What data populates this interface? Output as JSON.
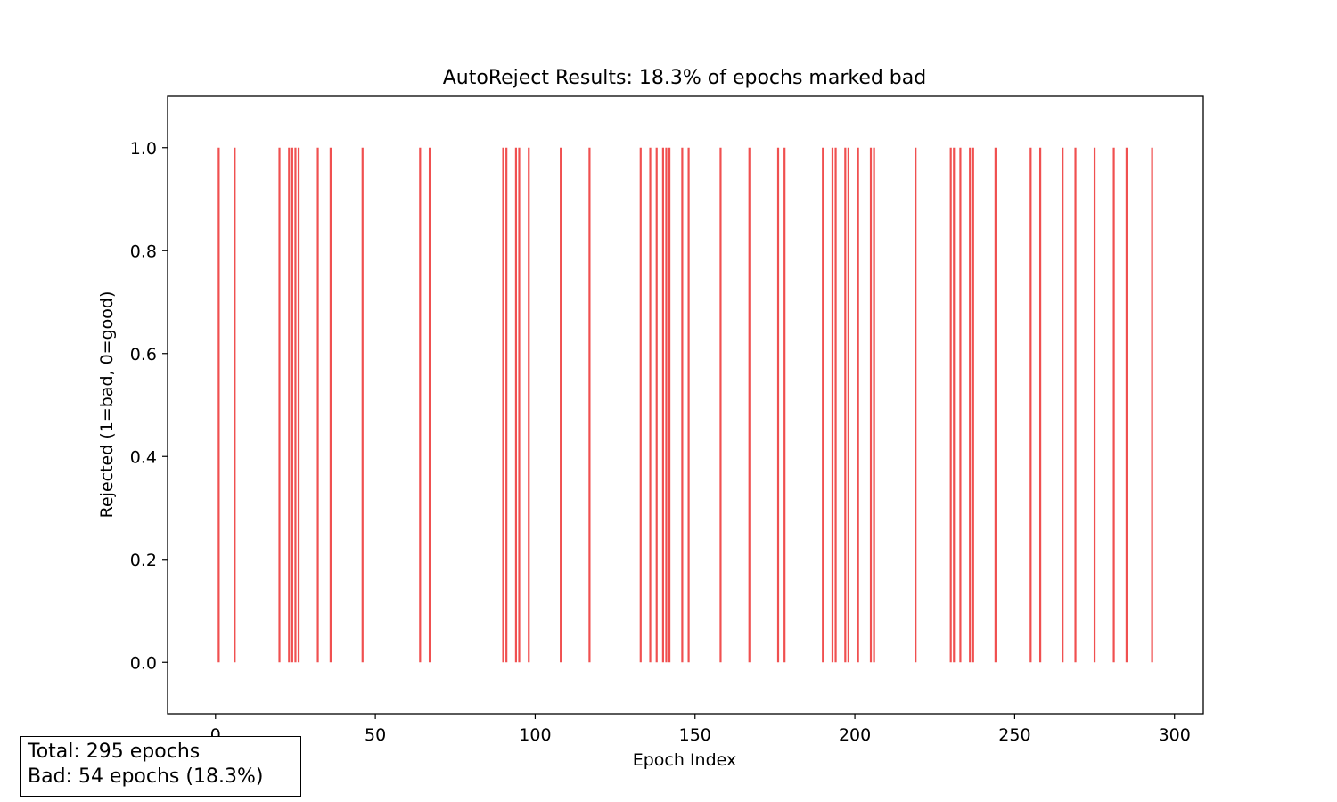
{
  "chart_data": {
    "type": "bar",
    "title": "AutoReject Results: 18.3% of epochs marked bad",
    "xlabel": "Epoch Index",
    "ylabel": "Rejected (1=bad, 0=good)",
    "xlim": [
      -15,
      309
    ],
    "ylim": [
      -0.1,
      1.1
    ],
    "xticks": [
      0,
      50,
      100,
      150,
      200,
      250,
      300
    ],
    "yticks": [
      0.0,
      0.2,
      0.4,
      0.6,
      0.8,
      1.0
    ],
    "grid": false,
    "bar_color": "#f05050",
    "series": [
      {
        "values_description_free": true,
        "bad_epochs": [
          1,
          6,
          20,
          23,
          24,
          25,
          26,
          32,
          36,
          46,
          64,
          67,
          90,
          91,
          94,
          95,
          98,
          108,
          117,
          133,
          136,
          138,
          140,
          141,
          142,
          146,
          148,
          158,
          167,
          176,
          178,
          190,
          193,
          194,
          197,
          198,
          201,
          205,
          206,
          219,
          230,
          231,
          233,
          236,
          237,
          244,
          255,
          258,
          265,
          269,
          275,
          281,
          285,
          293
        ],
        "value": 1
      }
    ]
  },
  "summary": {
    "total_line": "Total: 295 epochs",
    "bad_line": "Bad: 54 epochs (18.3%)"
  }
}
